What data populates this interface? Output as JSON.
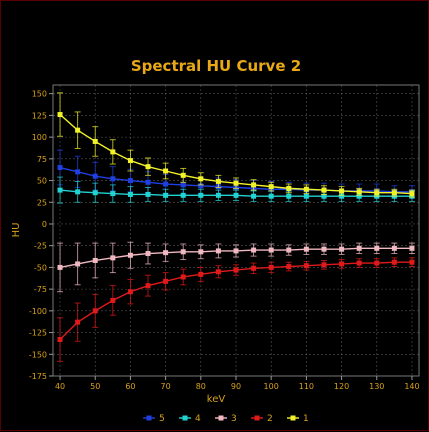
{
  "chart_data": {
    "type": "line",
    "title": "Spectral HU Curve 2",
    "xlabel": "keV",
    "ylabel": "HU",
    "xlim": [
      38,
      142
    ],
    "ylim": [
      -175,
      160
    ],
    "x_ticks": [
      40,
      50,
      60,
      70,
      80,
      90,
      100,
      110,
      120,
      130,
      140
    ],
    "y_ticks": [
      150,
      125,
      100,
      75,
      50,
      25,
      0,
      -25,
      -50,
      -75,
      -100,
      -125,
      -150,
      -175
    ],
    "grid": true,
    "legend_position": "bottom",
    "x": [
      40,
      45,
      50,
      55,
      60,
      65,
      70,
      75,
      80,
      85,
      90,
      95,
      100,
      105,
      110,
      115,
      120,
      125,
      130,
      135,
      140
    ],
    "series": [
      {
        "name": "5",
        "color": "#1f3fe0",
        "values": [
          65,
          60,
          55,
          52,
          50,
          48,
          46,
          45,
          44,
          43,
          42,
          41,
          40,
          40,
          39,
          39,
          38,
          38,
          38,
          37,
          37
        ],
        "errors": [
          20,
          18,
          16,
          14,
          13,
          12,
          11,
          11,
          10,
          10,
          9,
          9,
          9,
          8,
          8,
          8,
          8,
          8,
          8,
          7,
          7
        ]
      },
      {
        "name": "4",
        "color": "#22d3d3",
        "values": [
          39,
          37,
          36,
          35,
          34,
          34,
          33,
          33,
          33,
          33,
          33,
          32,
          32,
          32,
          32,
          32,
          32,
          32,
          32,
          32,
          32
        ],
        "errors": [
          15,
          12,
          11,
          10,
          9,
          8,
          7,
          7,
          7,
          6,
          6,
          6,
          6,
          6,
          6,
          6,
          6,
          6,
          6,
          6,
          6
        ]
      },
      {
        "name": "3",
        "color": "#f0b8c0",
        "values": [
          -50,
          -46,
          -42,
          -39,
          -36,
          -34,
          -33,
          -32,
          -32,
          -31,
          -31,
          -30,
          -30,
          -30,
          -29,
          -29,
          -29,
          -28,
          -28,
          -28,
          -28
        ],
        "errors": [
          28,
          24,
          20,
          17,
          15,
          12,
          10,
          9,
          8,
          8,
          7,
          7,
          7,
          6,
          6,
          6,
          6,
          6,
          6,
          6,
          6
        ]
      },
      {
        "name": "2",
        "color": "#e01a1a",
        "values": [
          -133,
          -113,
          -100,
          -88,
          -78,
          -71,
          -66,
          -61,
          -58,
          -55,
          -53,
          -51,
          -50,
          -49,
          -48,
          -47,
          -46,
          -45,
          -45,
          -44,
          -44
        ],
        "errors": [
          25,
          22,
          19,
          17,
          14,
          12,
          10,
          9,
          8,
          7,
          6,
          6,
          6,
          5,
          5,
          5,
          5,
          5,
          5,
          5,
          5
        ]
      },
      {
        "name": "1",
        "color": "#f2f22a",
        "values": [
          126,
          108,
          95,
          83,
          73,
          66,
          61,
          56,
          52,
          49,
          47,
          45,
          43,
          41,
          40,
          39,
          38,
          37,
          36,
          36,
          35
        ],
        "errors": [
          25,
          21,
          17,
          14,
          12,
          10,
          9,
          8,
          7,
          7,
          6,
          6,
          5,
          5,
          5,
          5,
          5,
          4,
          4,
          4,
          4
        ]
      }
    ],
    "legend_order": [
      0,
      1,
      2,
      3,
      4
    ]
  }
}
